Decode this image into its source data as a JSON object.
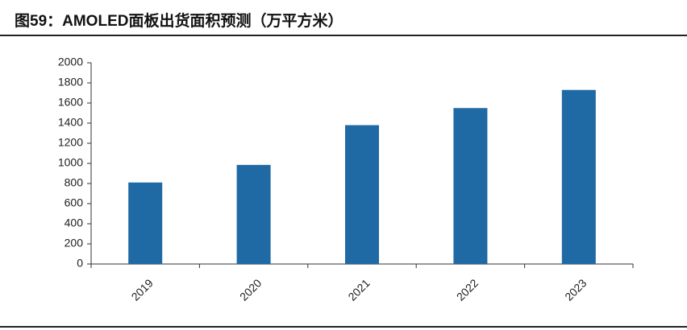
{
  "chart_data": {
    "type": "bar",
    "title": "图59：AMOLED面板出货面积预测（万平方米）",
    "categories": [
      "2019",
      "2020",
      "2021",
      "2022",
      "2023"
    ],
    "values": [
      810,
      985,
      1380,
      1550,
      1730
    ],
    "color": "#1f69a4",
    "ylim": [
      0,
      2000
    ],
    "yticks": [
      0,
      200,
      400,
      600,
      800,
      1000,
      1200,
      1400,
      1600,
      1800,
      2000
    ]
  }
}
